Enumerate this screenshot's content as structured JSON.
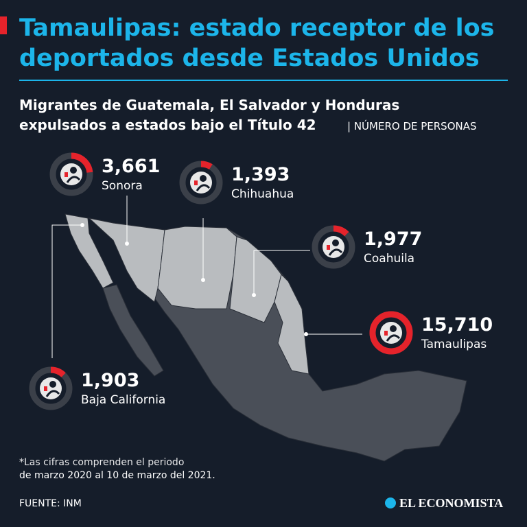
{
  "chart_data": {
    "type": "donut",
    "title_lines": [
      "Tamaulipas: estado receptor de los",
      "deportados desde Estados Unidos"
    ],
    "subtitle_lines": [
      "Migrantes de Guatemala, El Salvador y Honduras",
      "expulsados a estados bajo el Título 42"
    ],
    "unit_label": "| NÚMERO DE PERSONAS",
    "categories": [
      "Sonora",
      "Chihuahua",
      "Coahuila",
      "Tamaulipas",
      "Baja California"
    ],
    "values": [
      3661,
      1393,
      1977,
      15710,
      1903
    ],
    "value_labels": [
      "3,661",
      "1,393",
      "1,977",
      "15,710",
      "1,903"
    ],
    "color": "#e5232b",
    "footnote_lines": [
      "*Las cifras comprenden el periodo",
      "de marzo 2020 al 10 de marzo del 2021."
    ],
    "source": "FUENTE: INM",
    "brand": "EL ECONOMISTA"
  }
}
